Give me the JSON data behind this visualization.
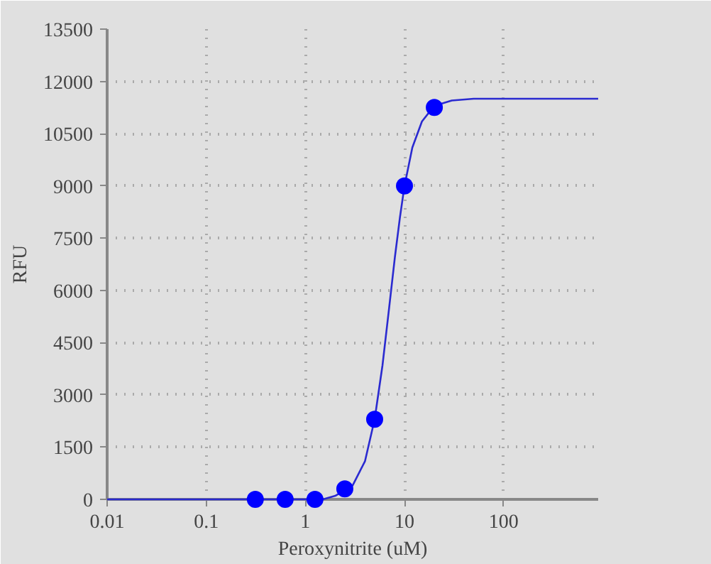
{
  "chart_data": {
    "type": "scatter",
    "xlabel": "Peroxynitrite (uM)",
    "ylabel": "RFU",
    "log": "x",
    "xlim": [
      0.01,
      900
    ],
    "xticks": [
      0.01,
      0.1,
      1,
      10,
      100
    ],
    "ylim": [
      0,
      13500
    ],
    "yticks": [
      0,
      1500,
      3000,
      4500,
      6000,
      7500,
      9000,
      10500,
      12000,
      13500
    ],
    "grid": true,
    "marker": "circle",
    "series": [
      {
        "type": "line",
        "color": "#2a2ad0",
        "line_style": "solid",
        "marker": "none",
        "x": [
          0.01,
          0.1,
          0.5,
          1,
          1.5,
          2,
          3,
          4,
          5,
          6,
          7,
          8,
          9,
          10,
          12,
          15,
          20,
          30,
          50,
          100,
          900
        ],
        "values": [
          0,
          0,
          0,
          0,
          0,
          100,
          400,
          1100,
          2300,
          3850,
          5500,
          6950,
          8100,
          9000,
          10100,
          10850,
          11300,
          11450,
          11500,
          11500,
          11500
        ]
      },
      {
        "color": "#0000ff",
        "x": [
          0.3125,
          0.625,
          1.25,
          2.5,
          5,
          10,
          20
        ],
        "values": [
          0,
          0,
          0,
          300,
          2300,
          9000,
          11250
        ]
      }
    ]
  }
}
